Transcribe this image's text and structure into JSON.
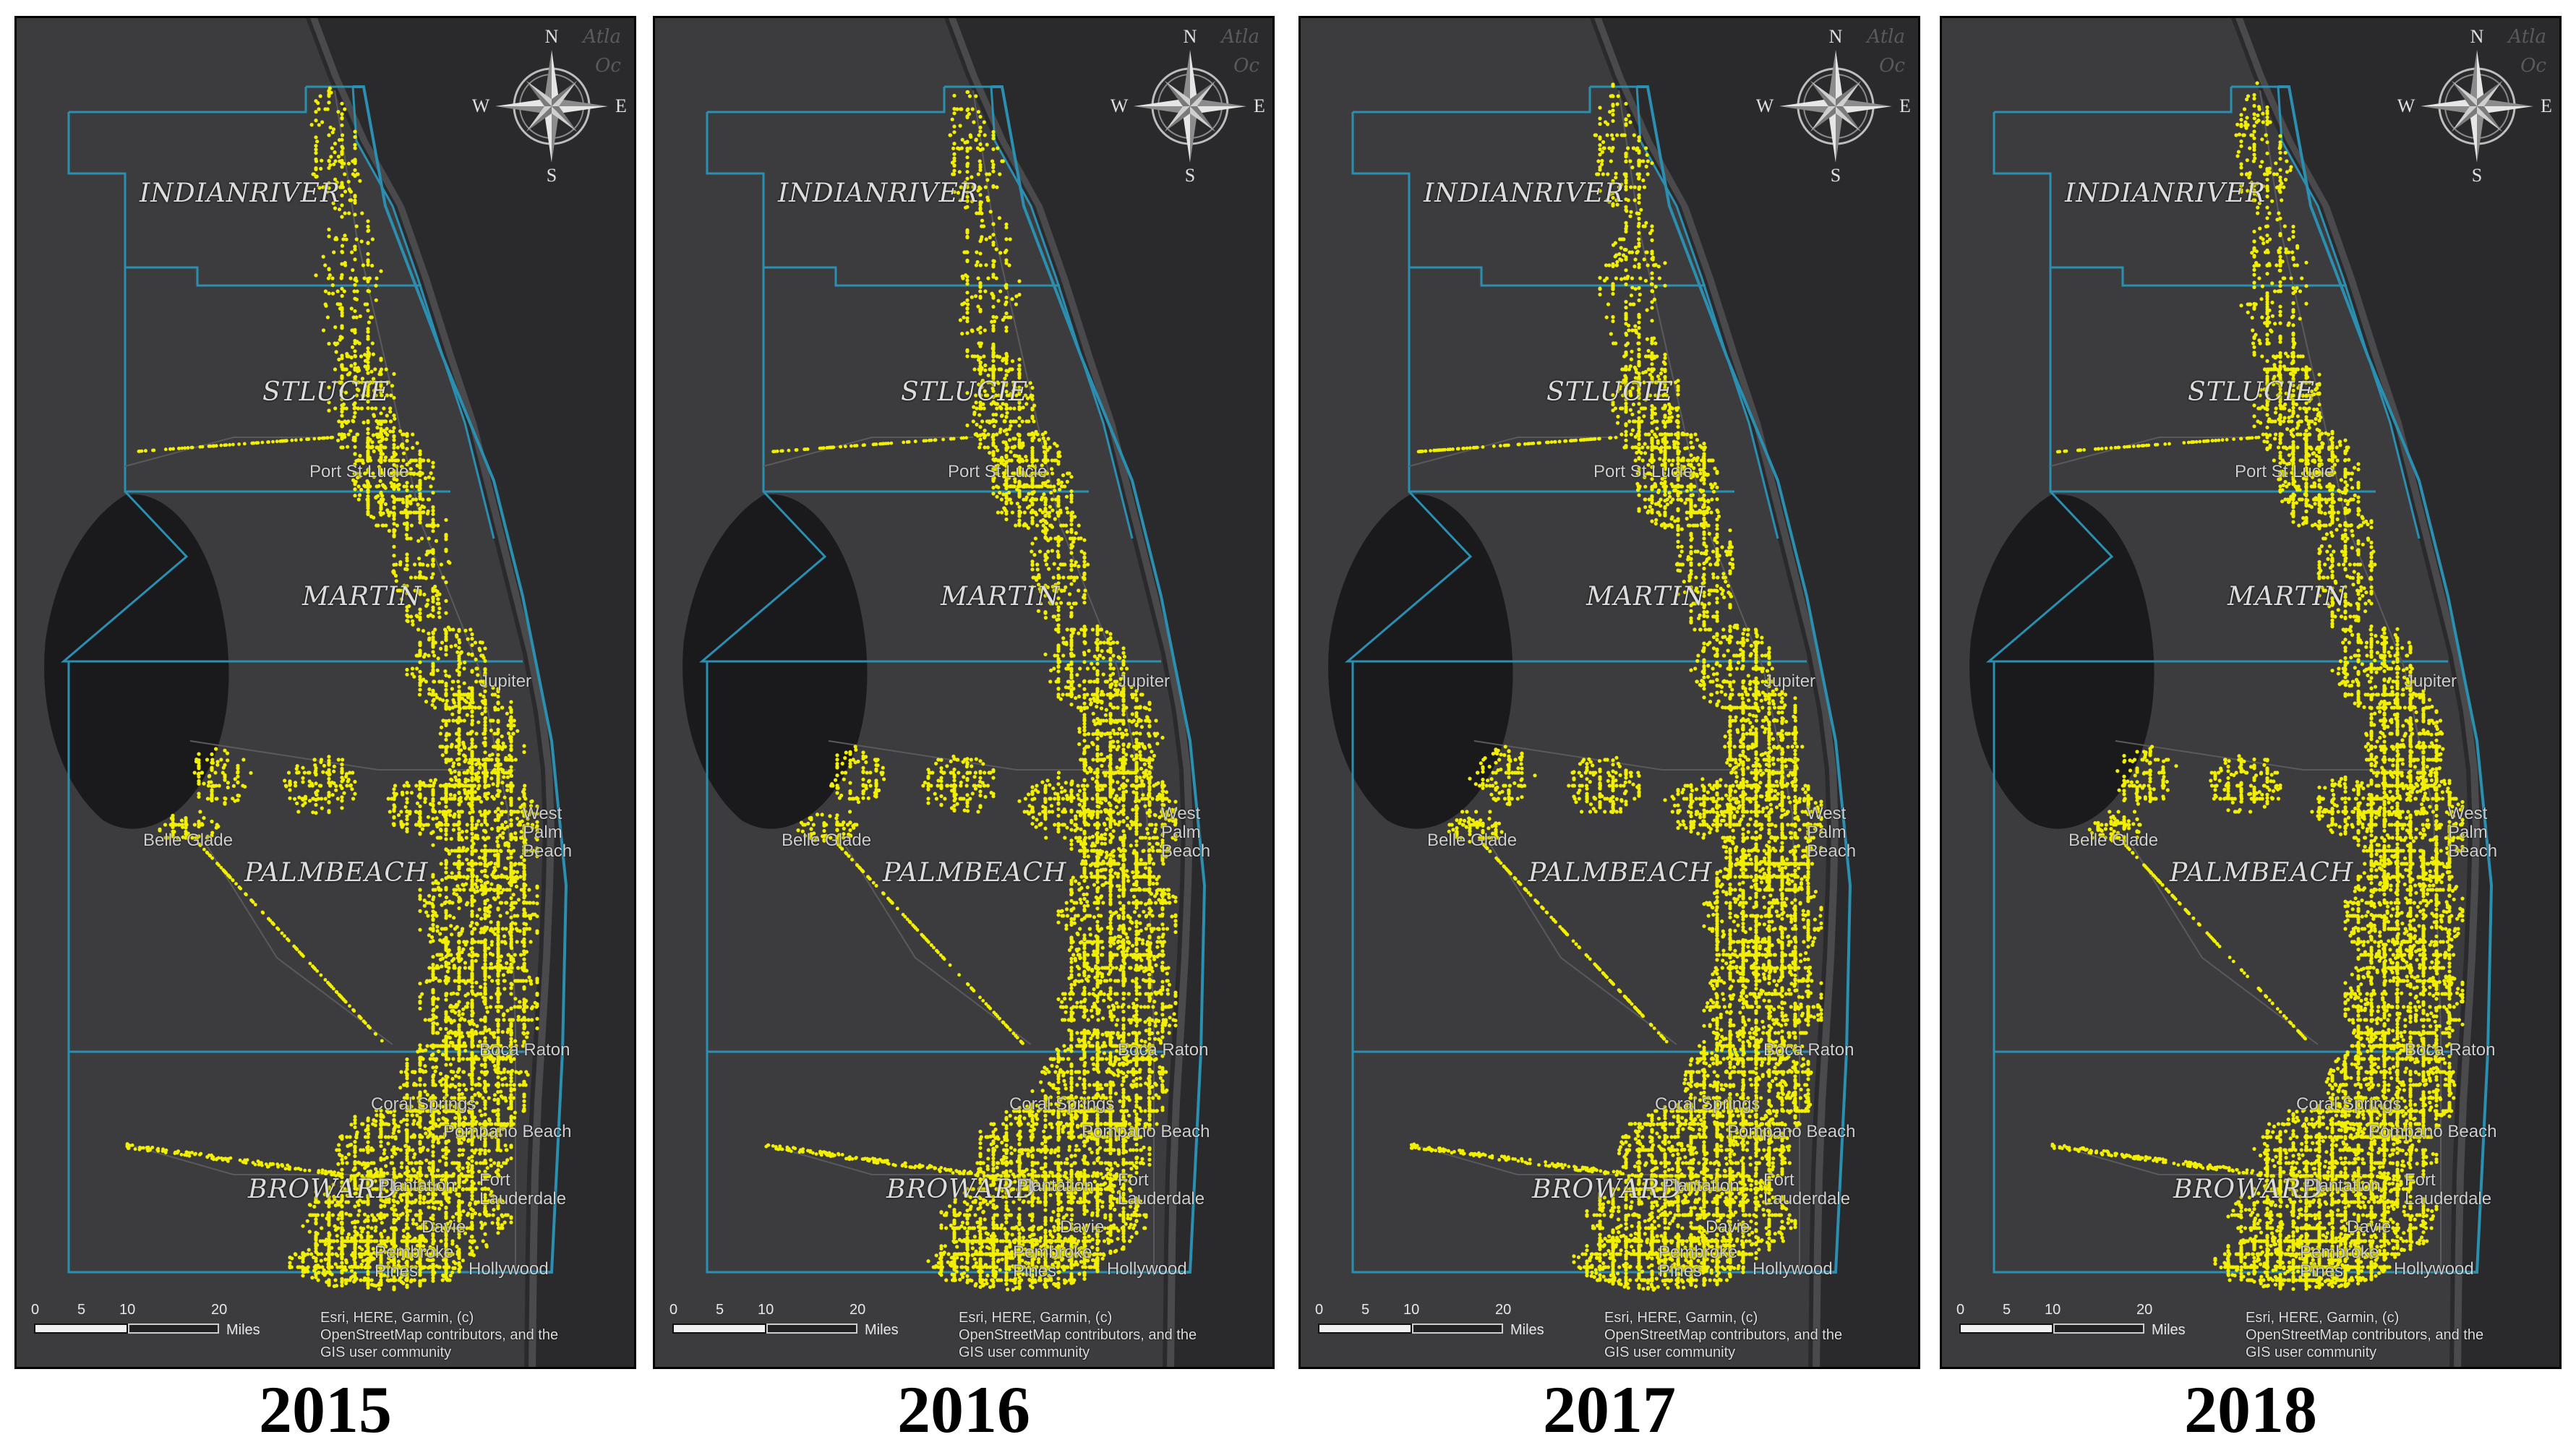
{
  "colors": {
    "land": "#3c3c3e",
    "ocean": "#2a2a2c",
    "lake": "#1a1a1c",
    "county_border": "#2a8fb0",
    "points": "#f2ef00"
  },
  "map": {
    "ocean_label_lines": [
      "Atla",
      "Oc"
    ],
    "compass": {
      "n": "N",
      "s": "S",
      "e": "E",
      "w": "W"
    },
    "counties": [
      {
        "id": "indianriver",
        "label": "INDIANRIVER"
      },
      {
        "id": "stlucie",
        "label": "STLUCIE"
      },
      {
        "id": "martin",
        "label": "MARTIN"
      },
      {
        "id": "palmbeach",
        "label": "PALMBEACH"
      },
      {
        "id": "broward",
        "label": "BROWARD"
      }
    ],
    "cities": [
      {
        "id": "portstlucie",
        "label": "Port St Lucie"
      },
      {
        "id": "jupiter",
        "label": "Jupiter"
      },
      {
        "id": "westpalmbeach",
        "label": "West Palm Beach"
      },
      {
        "id": "belleglade",
        "label": "Belle Glade"
      },
      {
        "id": "bocaraton",
        "label": "Boca Raton"
      },
      {
        "id": "coralsprings",
        "label": "Coral Springs"
      },
      {
        "id": "pompanobeach",
        "label": "Pompano Beach"
      },
      {
        "id": "plantation",
        "label": "Plantation"
      },
      {
        "id": "fortlauderdale",
        "label": "Fort Lauderdale"
      },
      {
        "id": "davie",
        "label": "Davie"
      },
      {
        "id": "pembrokepines",
        "label": "Pembroke Pines"
      },
      {
        "id": "hollywood",
        "label": "Hollywood"
      }
    ],
    "scale": {
      "ticks": [
        "0",
        "5",
        "10",
        "20"
      ],
      "unit": "Miles"
    },
    "attribution_lines": [
      "Esri, HERE, Garmin, (c)",
      "OpenStreetMap contributors, and the",
      "GIS user community"
    ]
  },
  "panels": [
    {
      "year": "2015"
    },
    {
      "year": "2016"
    },
    {
      "year": "2017"
    },
    {
      "year": "2018"
    }
  ]
}
